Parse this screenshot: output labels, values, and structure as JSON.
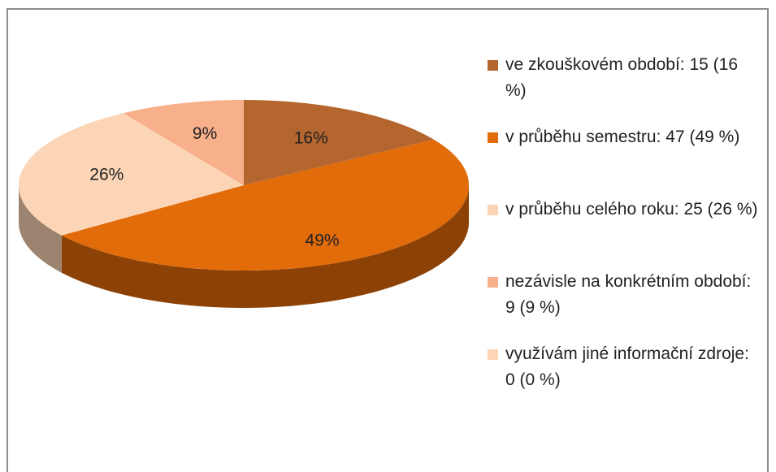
{
  "chart_data": {
    "type": "pie",
    "categories": [
      "ve zkouškovém období: 15 (16 %)",
      "v průběhu semestru: 47 (49 %)",
      "v průběhu celého roku: 25 (26 %)",
      "nezávisle na konkrétním období: 9 (9 %)",
      "využívám jiné informační zdroje: 0 (0 %)"
    ],
    "values": [
      16,
      49,
      26,
      9,
      0
    ],
    "value_labels": [
      "16%",
      "49%",
      "26%",
      "9%",
      null
    ],
    "colors": [
      "#b4662e",
      "#e26b0a",
      "#fbd5b5",
      "#f7b08a",
      "#fcd5b4"
    ]
  }
}
